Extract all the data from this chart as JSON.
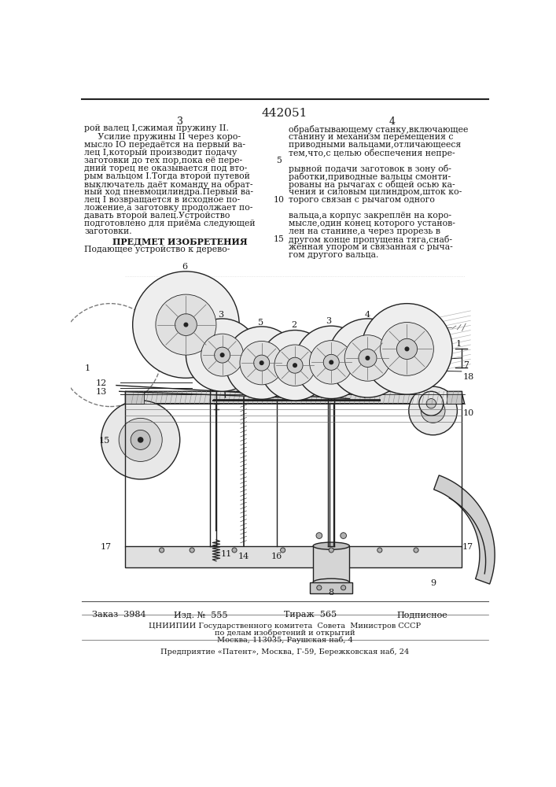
{
  "patent_number": "442051",
  "page_numbers": [
    "3",
    "4"
  ],
  "left_col": [
    "рой валец I,сжимая пружину II.",
    "     Усилие пружины II через коро-",
    "мысло IO передаётся на первый ва-",
    "лец I,который производит подачу",
    "заготовки до тех пор,пока её пере-",
    "дний торец не оказывается под вто-",
    "рым вальцом I.Тогда второй путевой",
    "выключатель даёт команду на обрат-",
    "ный ход пневмоцилиндра.Первый ва-",
    "лец I возвращается в исходное по-",
    "ложение,а заготовку продолжает по-",
    "давать второй валец.Устройство",
    "подготовлено для приёма следующей",
    "заготовки."
  ],
  "predmet_header": "ПРЕДМЕТ ИЗОБРЕТЕНИЯ",
  "predmet_line": "Подающее устройство к дерево-",
  "right_col": [
    "обрабатывающему станку,включающее",
    "станину и механизм перемещения с",
    "приводными вальцами,отличающееся",
    "тем,что,с целью обеспечения непре-",
    "",
    "рывной подачи заготовок в зону об-",
    "работки,приводные вальцы смонти-",
    "рованы на рычагах с общей осью ка-",
    "чения и силовым цилиндром,шток ко-",
    "торого связан с рычагом одного",
    "",
    "вальца,а корпус закреплён на коро-",
    "мысле,один конец которого установ-",
    "лен на станине,а через прорезь в",
    "другом конце пропущена тяга,снаб-",
    "жённая упором и связанная с рыча-",
    "гом другого вальца."
  ],
  "line_nums": [
    [
      "5",
      4
    ],
    [
      "10",
      9
    ],
    [
      "15",
      14
    ]
  ],
  "footer_zakas": "Заказ  3984",
  "footer_izd": "Изд. №  555",
  "footer_tirazh": "Тираж  565",
  "footer_podpisnoe": "Подписное",
  "footer_tsniipii": "ЦНИИПИИ Государственного комитета  Совета  Министров СССР",
  "footer_po_delam": "по делам изобретений и открытий",
  "footer_moscow": "Москва, 113035, Раушская наб, 4",
  "footer_predpriyatie": "Предприятие «Патент», Москва, Г-59, Бережковская наб, 24",
  "bg_color": "#ffffff",
  "text_color": "#1a1a1a"
}
